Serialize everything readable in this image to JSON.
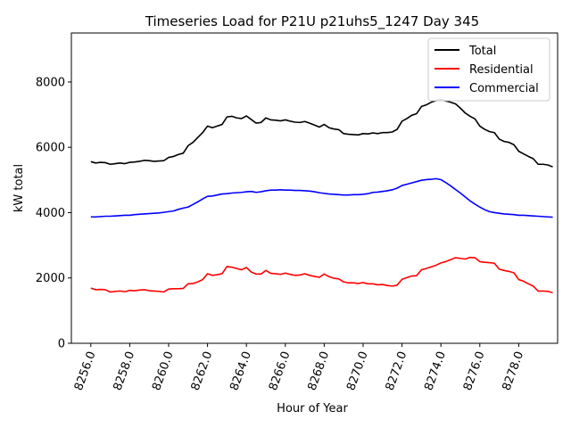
{
  "chart_data": {
    "type": "line",
    "title": "Timeseries Load for P21U p21uhs5_1247  Day 345",
    "xlabel": "Hour of Year",
    "ylabel": "kW total",
    "xlim": [
      8255.0,
      8280.0
    ],
    "ylim": [
      0,
      9500
    ],
    "xticks": [
      8256,
      8258,
      8260,
      8262,
      8264,
      8266,
      8268,
      8270,
      8272,
      8274,
      8276,
      8278
    ],
    "xtick_labels": [
      "8256.0",
      "8258.0",
      "8260.0",
      "8262.0",
      "8264.0",
      "8266.0",
      "8268.0",
      "8270.0",
      "8272.0",
      "8274.0",
      "8276.0",
      "8278.0"
    ],
    "yticks": [
      0,
      2000,
      4000,
      6000,
      8000
    ],
    "ytick_labels": [
      "0",
      "2000",
      "4000",
      "6000",
      "8000"
    ],
    "grid": false,
    "legend_position": "top-right",
    "series": [
      {
        "name": "Total",
        "color": "#000000",
        "x": [
          8256.0,
          8256.25,
          8256.5,
          8256.75,
          8257.0,
          8257.25,
          8257.5,
          8257.75,
          8258.0,
          8258.25,
          8258.5,
          8258.75,
          8259.0,
          8259.25,
          8259.5,
          8259.75,
          8260.0,
          8260.25,
          8260.5,
          8260.75,
          8261.0,
          8261.25,
          8261.5,
          8261.75,
          8262.0,
          8262.25,
          8262.5,
          8262.75,
          8263.0,
          8263.25,
          8263.5,
          8263.75,
          8264.0,
          8264.25,
          8264.5,
          8264.75,
          8265.0,
          8265.25,
          8265.5,
          8265.75,
          8266.0,
          8266.25,
          8266.5,
          8266.75,
          8267.0,
          8267.25,
          8267.5,
          8267.75,
          8268.0,
          8268.25,
          8268.5,
          8268.75,
          8269.0,
          8269.25,
          8269.5,
          8269.75,
          8270.0,
          8270.25,
          8270.5,
          8270.75,
          8271.0,
          8271.25,
          8271.5,
          8271.75,
          8272.0,
          8272.25,
          8272.5,
          8272.75,
          8273.0,
          8273.25,
          8273.5,
          8273.75,
          8274.0,
          8274.25,
          8274.5,
          8274.75,
          8275.0,
          8275.25,
          8275.5,
          8275.75,
          8276.0,
          8276.25,
          8276.5,
          8276.75,
          8277.0,
          8277.25,
          8277.5,
          8277.75,
          8278.0,
          8278.25,
          8278.5,
          8278.75,
          8279.0,
          8279.25,
          8279.5,
          8279.75
        ],
        "values": [
          5560,
          5520,
          5540,
          5530,
          5480,
          5500,
          5520,
          5500,
          5540,
          5550,
          5570,
          5600,
          5590,
          5570,
          5580,
          5590,
          5690,
          5720,
          5780,
          5820,
          6050,
          6150,
          6300,
          6450,
          6650,
          6600,
          6650,
          6700,
          6930,
          6950,
          6900,
          6880,
          6960,
          6850,
          6740,
          6760,
          6900,
          6840,
          6830,
          6810,
          6840,
          6800,
          6770,
          6760,
          6790,
          6740,
          6680,
          6620,
          6700,
          6600,
          6560,
          6540,
          6420,
          6400,
          6390,
          6380,
          6420,
          6410,
          6440,
          6420,
          6450,
          6450,
          6470,
          6550,
          6800,
          6880,
          6980,
          7030,
          7250,
          7300,
          7380,
          7430,
          7460,
          7420,
          7380,
          7330,
          7200,
          7050,
          6950,
          6870,
          6650,
          6550,
          6480,
          6450,
          6250,
          6180,
          6150,
          6080,
          5880,
          5800,
          5720,
          5650,
          5480,
          5480,
          5460,
          5400
        ]
      },
      {
        "name": "Residential",
        "color": "#ff0000",
        "x": [
          8256.0,
          8256.25,
          8256.5,
          8256.75,
          8257.0,
          8257.25,
          8257.5,
          8257.75,
          8258.0,
          8258.25,
          8258.5,
          8258.75,
          8259.0,
          8259.25,
          8259.5,
          8259.75,
          8260.0,
          8260.25,
          8260.5,
          8260.75,
          8261.0,
          8261.25,
          8261.5,
          8261.75,
          8262.0,
          8262.25,
          8262.5,
          8262.75,
          8263.0,
          8263.25,
          8263.5,
          8263.75,
          8264.0,
          8264.25,
          8264.5,
          8264.75,
          8265.0,
          8265.25,
          8265.5,
          8265.75,
          8266.0,
          8266.25,
          8266.5,
          8266.75,
          8267.0,
          8267.25,
          8267.5,
          8267.75,
          8268.0,
          8268.25,
          8268.5,
          8268.75,
          8269.0,
          8269.25,
          8269.5,
          8269.75,
          8270.0,
          8270.25,
          8270.5,
          8270.75,
          8271.0,
          8271.25,
          8271.5,
          8271.75,
          8272.0,
          8272.25,
          8272.5,
          8272.75,
          8273.0,
          8273.25,
          8273.5,
          8273.75,
          8274.0,
          8274.25,
          8274.5,
          8274.75,
          8275.0,
          8275.25,
          8275.5,
          8275.75,
          8276.0,
          8276.25,
          8276.5,
          8276.75,
          8277.0,
          8277.25,
          8277.5,
          8277.75,
          8278.0,
          8278.25,
          8278.5,
          8278.75,
          8279.0,
          8279.25,
          8279.5,
          8279.75
        ],
        "values": [
          1690,
          1640,
          1650,
          1640,
          1570,
          1590,
          1600,
          1580,
          1620,
          1610,
          1630,
          1640,
          1610,
          1600,
          1590,
          1570,
          1660,
          1670,
          1670,
          1680,
          1820,
          1830,
          1880,
          1950,
          2130,
          2080,
          2100,
          2130,
          2350,
          2330,
          2290,
          2250,
          2320,
          2180,
          2120,
          2120,
          2230,
          2140,
          2130,
          2110,
          2150,
          2110,
          2080,
          2090,
          2130,
          2080,
          2050,
          2020,
          2120,
          2040,
          1990,
          1970,
          1880,
          1850,
          1850,
          1830,
          1860,
          1820,
          1820,
          1790,
          1800,
          1770,
          1750,
          1780,
          1960,
          2010,
          2060,
          2070,
          2250,
          2290,
          2340,
          2390,
          2460,
          2500,
          2560,
          2620,
          2600,
          2580,
          2630,
          2620,
          2500,
          2480,
          2470,
          2450,
          2270,
          2230,
          2200,
          2160,
          1950,
          1900,
          1820,
          1750,
          1600,
          1600,
          1590,
          1550
        ]
      },
      {
        "name": "Commercial",
        "color": "#0000ff",
        "x": [
          8256.0,
          8256.25,
          8256.5,
          8256.75,
          8257.0,
          8257.25,
          8257.5,
          8257.75,
          8258.0,
          8258.25,
          8258.5,
          8258.75,
          8259.0,
          8259.25,
          8259.5,
          8259.75,
          8260.0,
          8260.25,
          8260.5,
          8260.75,
          8261.0,
          8261.25,
          8261.5,
          8261.75,
          8262.0,
          8262.25,
          8262.5,
          8262.75,
          8263.0,
          8263.25,
          8263.5,
          8263.75,
          8264.0,
          8264.25,
          8264.5,
          8264.75,
          8265.0,
          8265.25,
          8265.5,
          8265.75,
          8266.0,
          8266.25,
          8266.5,
          8266.75,
          8267.0,
          8267.25,
          8267.5,
          8267.75,
          8268.0,
          8268.25,
          8268.5,
          8268.75,
          8269.0,
          8269.25,
          8269.5,
          8269.75,
          8270.0,
          8270.25,
          8270.5,
          8270.75,
          8271.0,
          8271.25,
          8271.5,
          8271.75,
          8272.0,
          8272.25,
          8272.5,
          8272.75,
          8273.0,
          8273.25,
          8273.5,
          8273.75,
          8274.0,
          8274.25,
          8274.5,
          8274.75,
          8275.0,
          8275.25,
          8275.5,
          8275.75,
          8276.0,
          8276.25,
          8276.5,
          8276.75,
          8277.0,
          8277.25,
          8277.5,
          8277.75,
          8278.0,
          8278.25,
          8278.5,
          8278.75,
          8279.0,
          8279.25,
          8279.5,
          8279.75
        ],
        "values": [
          3870,
          3870,
          3880,
          3890,
          3890,
          3900,
          3910,
          3920,
          3920,
          3940,
          3950,
          3960,
          3970,
          3980,
          3990,
          4010,
          4030,
          4050,
          4100,
          4140,
          4170,
          4250,
          4330,
          4420,
          4500,
          4510,
          4540,
          4570,
          4580,
          4600,
          4610,
          4620,
          4640,
          4650,
          4620,
          4640,
          4670,
          4690,
          4690,
          4700,
          4690,
          4690,
          4680,
          4680,
          4670,
          4660,
          4640,
          4610,
          4590,
          4570,
          4560,
          4550,
          4540,
          4540,
          4550,
          4550,
          4560,
          4580,
          4620,
          4630,
          4650,
          4670,
          4700,
          4750,
          4830,
          4870,
          4910,
          4950,
          4990,
          5010,
          5020,
          5040,
          5010,
          4920,
          4820,
          4710,
          4600,
          4480,
          4360,
          4260,
          4170,
          4090,
          4030,
          4000,
          3980,
          3960,
          3950,
          3940,
          3920,
          3920,
          3910,
          3900,
          3890,
          3880,
          3870,
          3860
        ]
      }
    ]
  }
}
